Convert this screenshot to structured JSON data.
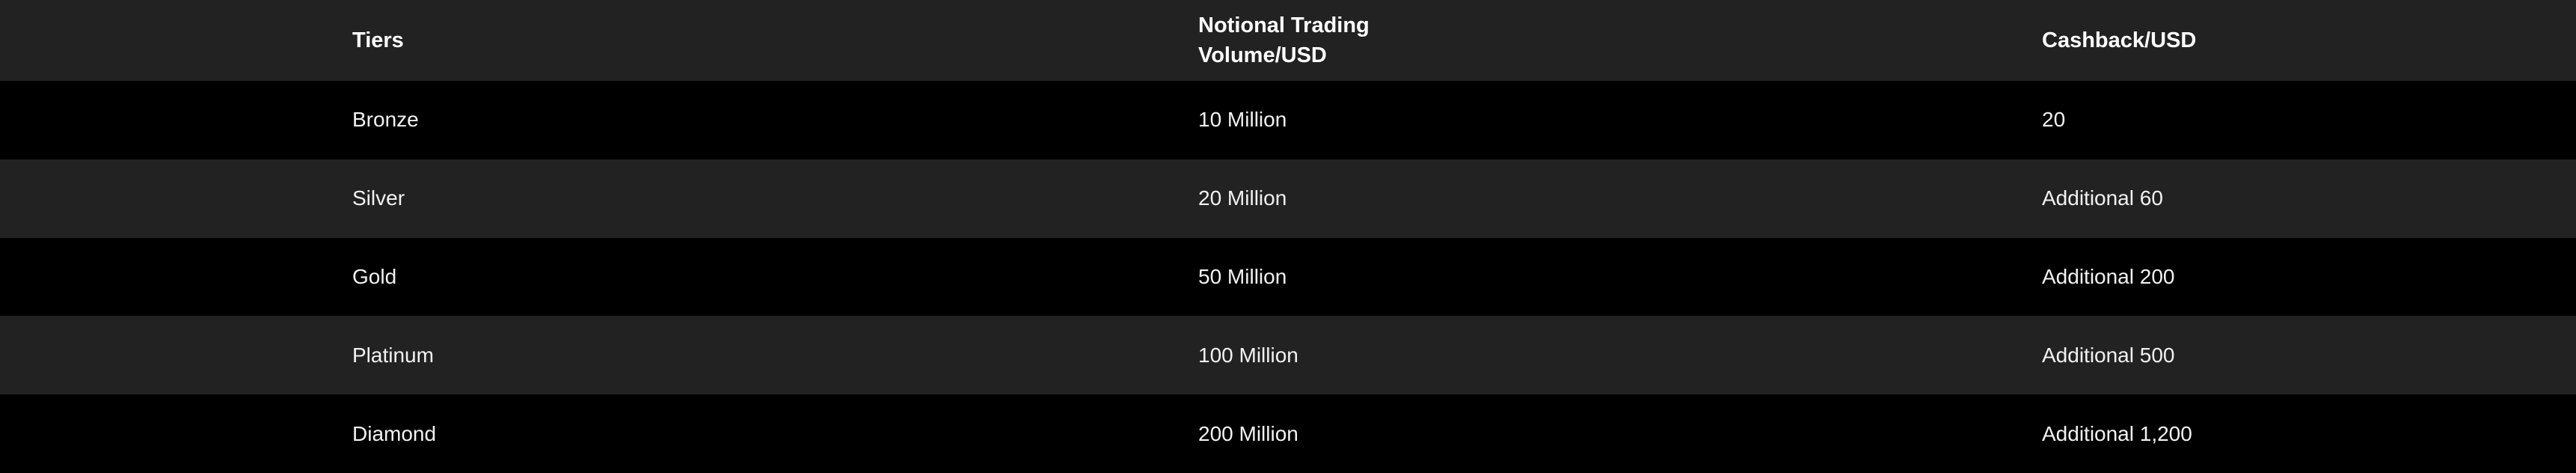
{
  "table": {
    "headers": [
      "Tiers",
      "Notional Trading\nVolume/USD",
      "Cashback/USD"
    ],
    "header_lines": {
      "notional_1": "Notional Trading",
      "notional_2": "Volume/USD"
    },
    "rows": [
      [
        "Bronze",
        "10 Million",
        "20"
      ],
      [
        "Silver",
        "20 Million",
        "Additional 60"
      ],
      [
        "Gold",
        "50 Million",
        "Additional 200"
      ],
      [
        "Platinum",
        "100 Million",
        "Additional 500"
      ],
      [
        "Diamond",
        "200 Million",
        "Additional 1,200"
      ]
    ]
  },
  "colors": {
    "header_bg": "#232223",
    "alt_row_bg": "#232223",
    "row_bg": "#000000",
    "text": "#ffffff"
  }
}
